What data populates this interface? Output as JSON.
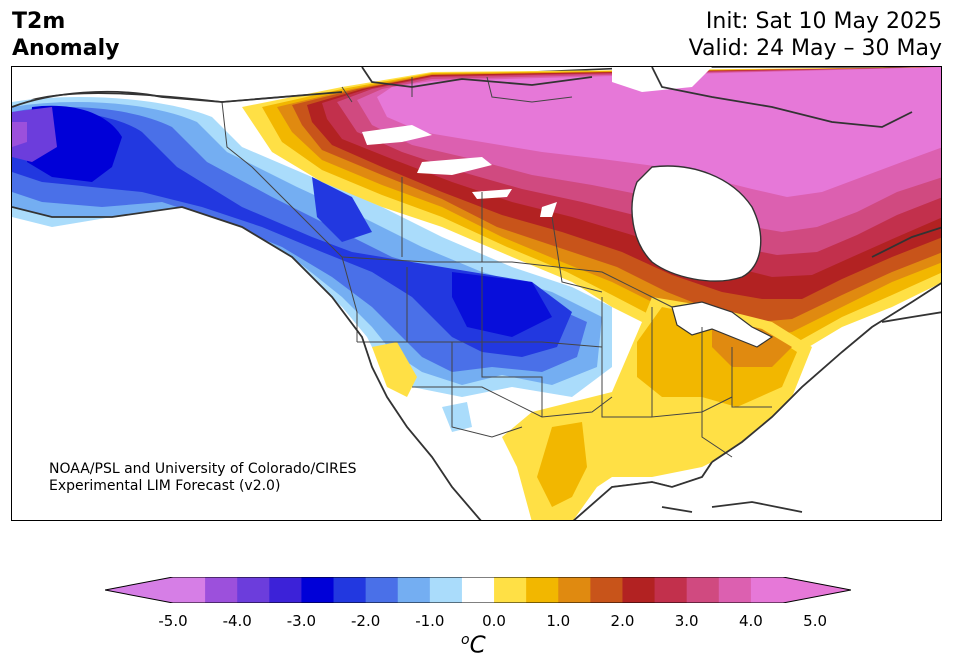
{
  "header": {
    "title_line1": "T2m",
    "title_line2": "Anomaly",
    "init_text": "Init: Sat 10 May 2025",
    "valid_text": "Valid: 24 May – 30 May"
  },
  "credit": {
    "line1": "NOAA/PSL and University of Colorado/CIRES",
    "line2": "Experimental LIM Forecast (v2.0)"
  },
  "colorbar": {
    "tick_labels": [
      "-5.0",
      "-4.0",
      "-3.0",
      "-2.0",
      "-1.0",
      "0.0",
      "1.0",
      "2.0",
      "3.0",
      "4.0",
      "5.0"
    ],
    "unit_base": "o",
    "unit_main": "C",
    "levels": [
      -5.0,
      -4.5,
      -4.0,
      -3.5,
      -3.0,
      -2.5,
      -2.0,
      -1.5,
      -1.0,
      -0.5,
      0.5,
      1.0,
      1.5,
      2.0,
      2.5,
      3.0,
      3.5,
      4.0,
      4.5,
      5.0
    ],
    "colors": [
      "#d67ee6",
      "#9c50dc",
      "#6c3ddc",
      "#3c22d8",
      "#0000d8",
      "#2238e0",
      "#4a70e8",
      "#74aef2",
      "#aadcfb",
      "#ffffff",
      "#ffe045",
      "#f2b700",
      "#e08a10",
      "#c8541a",
      "#b22222",
      "#c2304c",
      "#d04a80",
      "#dc60b0",
      "#e678d8"
    ],
    "extend_low_color": "#d67ee6",
    "extend_high_color": "#e678d8"
  }
}
